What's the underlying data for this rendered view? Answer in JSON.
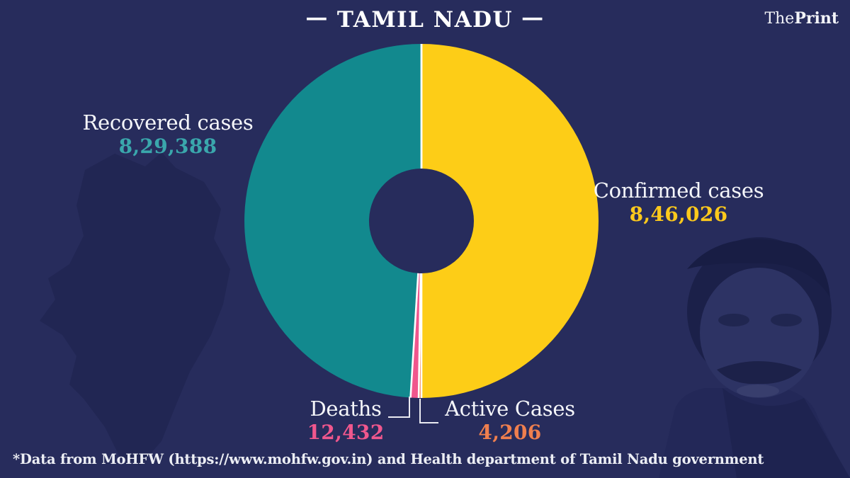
{
  "header": {
    "dash": "—",
    "title": "TAMIL NADU",
    "brand_the": "The",
    "brand_print": "Print"
  },
  "chart_data": {
    "type": "pie",
    "title": "TAMIL NADU",
    "donut": true,
    "start_angle_deg": 0,
    "direction": "clockwise",
    "inner_radius_ratio": 0.295,
    "separator_color": "#ffffff",
    "background_color": "#272c5c",
    "slices": [
      {
        "label": "Confirmed cases",
        "value": 846026,
        "display": "8,46,026",
        "color": "#fdcd17",
        "value_color": "#fdc91c"
      },
      {
        "label": "Active Cases",
        "value": 4206,
        "display": "4,206",
        "color": "#ee7b43",
        "value_color": "#ef7f4e"
      },
      {
        "label": "Deaths",
        "value": 12432,
        "display": "12,432",
        "color": "#f0568d",
        "value_color": "#f0578d"
      },
      {
        "label": "Recovered cases",
        "value": 829388,
        "display": "8,29,388",
        "color": "#12898e",
        "value_color": "#3aa7ac"
      }
    ]
  },
  "footer": {
    "note": "*Data from MoHFW (https://www.mohfw.gov.in) and Health department of Tamil Nadu government"
  }
}
